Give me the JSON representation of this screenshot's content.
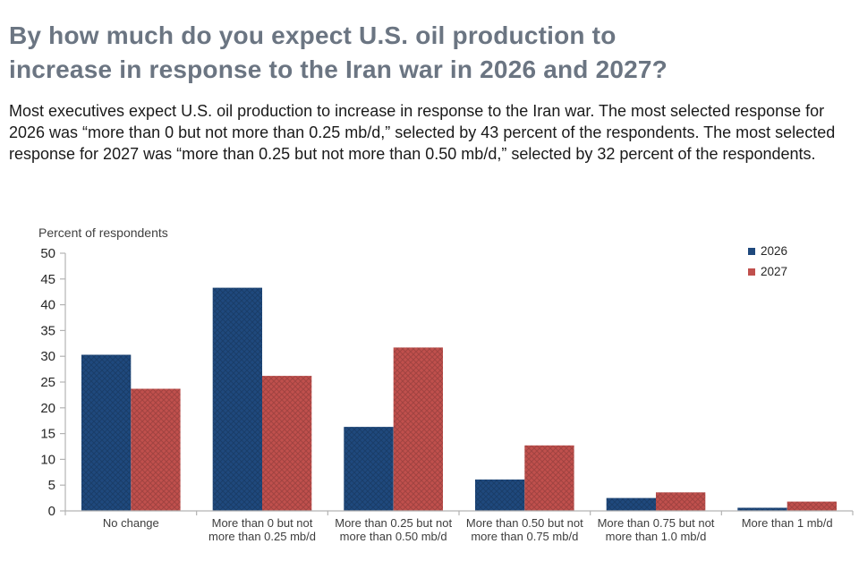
{
  "page": {
    "title_lines": [
      "By how much do you expect U.S. oil production to",
      "increase in response to the Iran war in 2026 and 2027?"
    ],
    "subtitle": "Most executives expect U.S. oil production to increase in response to the Iran war. The most selected response for 2026 was “more than 0 but not more than 0.25 mb/d,” selected by 43 percent of the respondents. The most selected response for 2027 was “more than 0.25 but not more than 0.50 mb/d,” selected by 32 percent of the respondents."
  },
  "colors": {
    "title": "#6B7582",
    "body_text": "#1A1A1A",
    "axis_line": "#B3B3B3",
    "tick_text": "#262626",
    "series_2026": "#1F497D",
    "series_2027": "#C0504D"
  },
  "chart_data": {
    "type": "bar",
    "title": "",
    "xlabel": "",
    "ylabel": "Percent of respondents",
    "categories": [
      "No change",
      "More than 0 but not more than 0.25 mb/d",
      "More than 0.25 but not more than 0.50 mb/d",
      "More than 0.50 but not more than 0.75 mb/d",
      "More than 0.75 but not more than 1.0 mb/d",
      "More than 1 mb/d"
    ],
    "series": [
      {
        "name": "2026",
        "color": "#1F497D",
        "values": [
          30.3,
          43.3,
          16.3,
          6.1,
          2.5,
          0.6
        ]
      },
      {
        "name": "2027",
        "color": "#C0504D",
        "values": [
          23.7,
          26.2,
          31.7,
          12.7,
          3.6,
          1.8
        ]
      }
    ],
    "ylim": [
      0,
      50
    ],
    "ytick_step": 5,
    "grid": false,
    "legend_position": "top-right"
  }
}
